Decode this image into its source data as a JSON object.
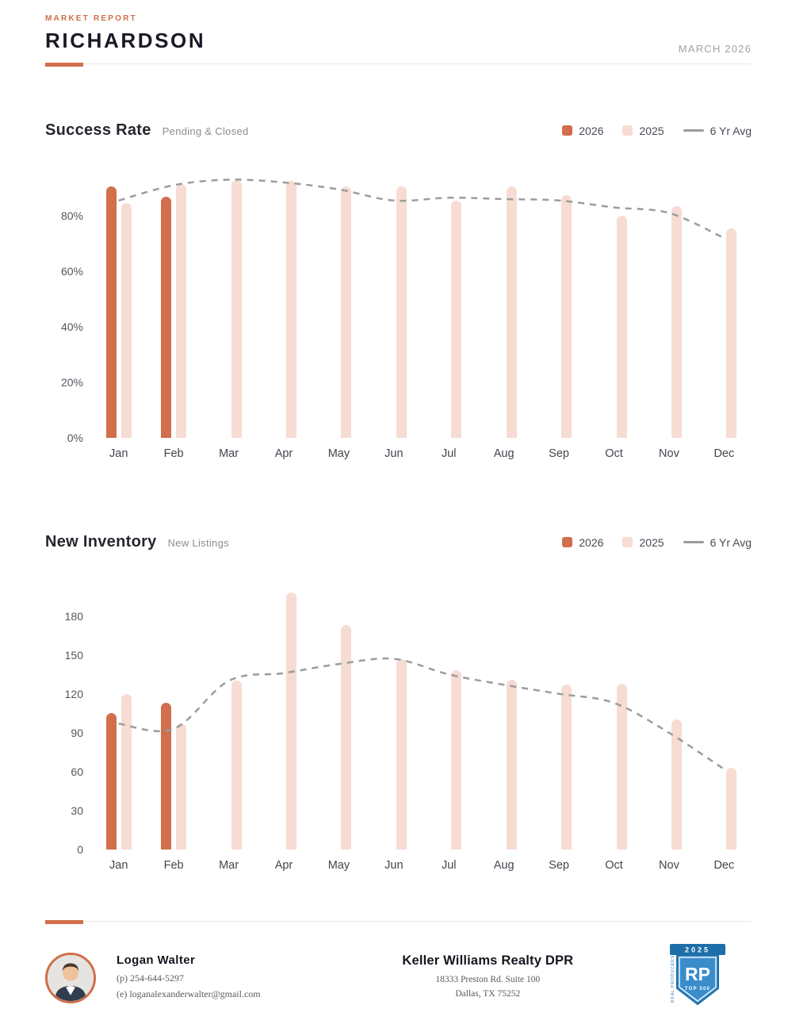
{
  "colors": {
    "accent": "#D16E4B",
    "light": "#F6DCD2",
    "line": "#9C9C9C",
    "badge_blue": "#3B8CCB",
    "badge_dark": "#1E6FA9"
  },
  "header": {
    "eyebrow": "MARKET REPORT",
    "title": "RICHARDSON",
    "date": "MARCH 2026"
  },
  "chart_data": [
    {
      "type": "bar",
      "title": "Success Rate",
      "subtitle": "Pending & Closed",
      "grid": false,
      "legend_position": "top-right",
      "categories": [
        "Jan",
        "Feb",
        "Mar",
        "Apr",
        "May",
        "Jun",
        "Jul",
        "Aug",
        "Sep",
        "Oct",
        "Nov",
        "Dec"
      ],
      "ylim": [
        0,
        100
      ],
      "yticks": [
        {
          "value": 0,
          "label": "0%"
        },
        {
          "value": 20,
          "label": "20%"
        },
        {
          "value": 40,
          "label": "40%"
        },
        {
          "value": 60,
          "label": "60%"
        },
        {
          "value": 80,
          "label": "80%"
        }
      ],
      "series": [
        {
          "name": "2026",
          "type": "bar",
          "color": "accent",
          "values": [
            90.5,
            87,
            null,
            null,
            null,
            null,
            null,
            null,
            null,
            null,
            null,
            null
          ]
        },
        {
          "name": "2025",
          "type": "bar",
          "color": "light",
          "values": [
            84.5,
            91.5,
            93,
            92.5,
            90.5,
            90.5,
            85.5,
            90.5,
            87.5,
            80,
            83.5,
            75.5
          ]
        },
        {
          "name": "6 Yr Avg",
          "type": "line",
          "color": "line",
          "values": [
            85.5,
            91,
            93,
            92,
            89.5,
            85.5,
            86.5,
            86,
            85.5,
            83,
            81,
            72
          ]
        }
      ]
    },
    {
      "type": "bar",
      "title": "New Inventory",
      "subtitle": "New Listings",
      "grid": false,
      "legend_position": "top-right",
      "categories": [
        "Jan",
        "Feb",
        "Mar",
        "Apr",
        "May",
        "Jun",
        "Jul",
        "Aug",
        "Sep",
        "Oct",
        "Nov",
        "Dec"
      ],
      "ylim": [
        0,
        214
      ],
      "yticks": [
        {
          "value": 0,
          "label": "0"
        },
        {
          "value": 30,
          "label": "30"
        },
        {
          "value": 60,
          "label": "60"
        },
        {
          "value": 90,
          "label": "90"
        },
        {
          "value": 120,
          "label": "120"
        },
        {
          "value": 150,
          "label": "150"
        },
        {
          "value": 180,
          "label": "180"
        }
      ],
      "series": [
        {
          "name": "2026",
          "type": "bar",
          "color": "accent",
          "values": [
            105,
            113,
            null,
            null,
            null,
            null,
            null,
            null,
            null,
            null,
            null,
            null
          ]
        },
        {
          "name": "2025",
          "type": "bar",
          "color": "light",
          "values": [
            120,
            97,
            130,
            198,
            173,
            147,
            138,
            131,
            127,
            128,
            100,
            63
          ]
        },
        {
          "name": "6 Yr Avg",
          "type": "line",
          "color": "line",
          "values": [
            97,
            93,
            130,
            136,
            143,
            147,
            135,
            127,
            120,
            113,
            90,
            62
          ]
        }
      ]
    }
  ],
  "footer": {
    "agent": {
      "name": "Logan Walter",
      "phone": "(p) 254-644-5297",
      "email": "(e) loganalexanderwalter@gmail.com"
    },
    "company": {
      "name": "Keller Williams Realty DPR",
      "address_line1": "18333 Preston Rd. Suite 100",
      "address_line2": "Dallas, TX 75252"
    },
    "badge": {
      "year": "2025",
      "initials": "RP",
      "rank": "TOP 500",
      "organization": "REAL PRODUCERS"
    }
  }
}
